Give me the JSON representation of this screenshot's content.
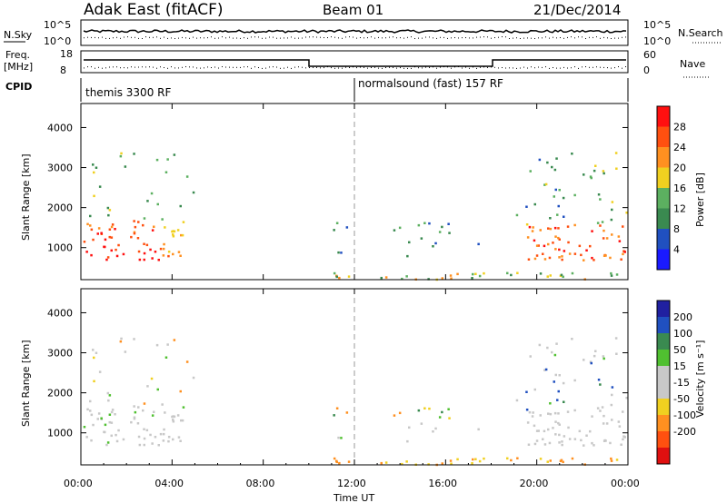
{
  "header": {
    "site": "Adak East (fitACF)",
    "beam": "Beam 01",
    "date": "21/Dec/2014"
  },
  "panels": {
    "nsky": {
      "label": "N.Sky",
      "ticks": [
        "10^5",
        "10^0"
      ],
      "right_label": "N.Search",
      "right_ticks": [
        "10^5",
        "10^0"
      ]
    },
    "freq": {
      "label_top": "Freq.",
      "label_unit": "[MHz]",
      "ticks": [
        "18",
        "8"
      ],
      "right_label": "Nave",
      "right_ticks": [
        "60",
        "0"
      ]
    },
    "cpid": {
      "label": "CPID",
      "modes": [
        "themis 3300 RF",
        "normalsound (fast) 157 RF"
      ]
    }
  },
  "colors": {
    "power": [
      "#1a1aff",
      "#2050c0",
      "#3a8a50",
      "#5cb060",
      "#f0d020",
      "#ff9020",
      "#ff5010",
      "#ff1010"
    ],
    "velocity": [
      "#e01010",
      "#ff5010",
      "#ff9020",
      "#f0d020",
      "#c8c8c8",
      "#c8c8c8",
      "#50c030",
      "#3a8a50",
      "#2050c0",
      "#2020a0"
    ]
  },
  "chart_data": [
    {
      "type": "heatmap",
      "name": "power",
      "ylabel": "Slant Range [km]",
      "yticks": [
        1000,
        2000,
        3000,
        4000
      ],
      "ylim": [
        200,
        4600
      ],
      "xticks": [
        "00:00",
        "04:00",
        "08:00",
        "12:00",
        "16:00",
        "20:00",
        "00:00"
      ],
      "xlim_hours": [
        0,
        24
      ],
      "colorbar": {
        "label": "Power [dB]",
        "ticks": [
          "4",
          "8",
          "12",
          "16",
          "20",
          "24",
          "28"
        ],
        "range": [
          0,
          32
        ]
      }
    },
    {
      "type": "heatmap",
      "name": "velocity",
      "ylabel": "Slant Range [km]",
      "yticks": [
        1000,
        2000,
        3000,
        4000
      ],
      "ylim": [
        200,
        4600
      ],
      "xticks": [
        "00:00",
        "04:00",
        "08:00",
        "12:00",
        "16:00",
        "20:00",
        "00:00"
      ],
      "xlabel": "Time UT",
      "colorbar": {
        "label": "Velocity [m s⁻¹]",
        "ticks": [
          "200",
          "100",
          "50",
          "15",
          "-15",
          "-50",
          "-100",
          "-200"
        ]
      }
    }
  ]
}
